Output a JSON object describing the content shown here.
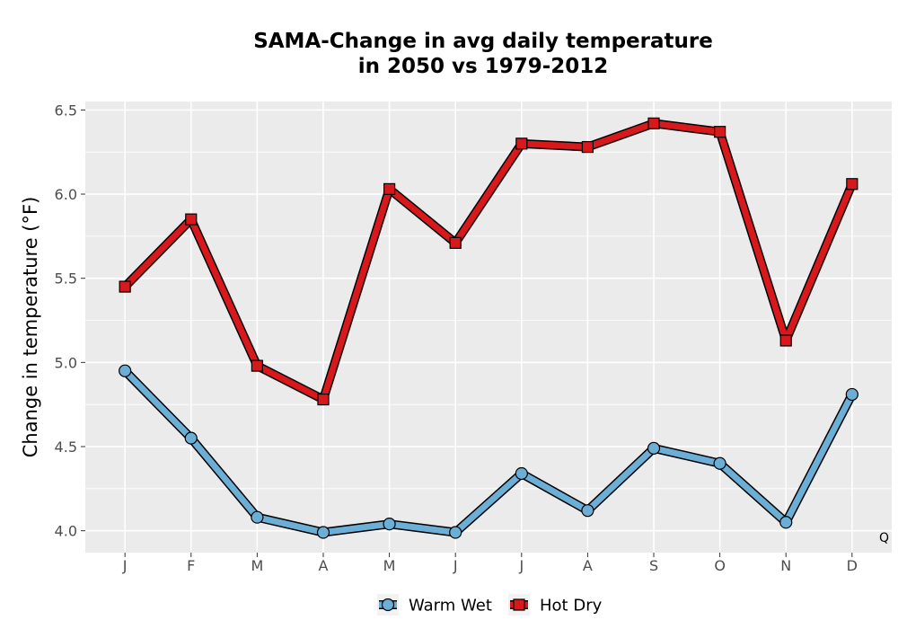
{
  "chart_data": {
    "type": "line",
    "title_lines": [
      "SAMA-Change in avg daily temperature",
      "in 2050 vs 1979-2012"
    ],
    "xlabel": "",
    "ylabel": "Change in temperature (°F)",
    "categories": [
      "J",
      "F",
      "M",
      "A",
      "M",
      "J",
      "J",
      "A",
      "S",
      "O",
      "N",
      "D"
    ],
    "ylim": [
      3.87,
      6.55
    ],
    "y_ticks": [
      4.0,
      4.5,
      5.0,
      5.5,
      6.0,
      6.5
    ],
    "y_tick_labels": [
      "4.0",
      "4.5",
      "5.0",
      "5.5",
      "6.0",
      "6.5"
    ],
    "grid": true,
    "legend_position": "bottom",
    "corner_annotation": "Q",
    "series": [
      {
        "name": "Warm Wet",
        "marker": "circle",
        "color": "#6baed6",
        "values": [
          4.95,
          4.55,
          4.08,
          3.99,
          4.04,
          3.99,
          4.34,
          4.12,
          4.49,
          4.4,
          4.05,
          4.81
        ]
      },
      {
        "name": "Hot Dry",
        "marker": "square",
        "color": "#d7191c",
        "values": [
          5.45,
          5.85,
          4.98,
          4.78,
          6.03,
          5.71,
          6.3,
          6.28,
          6.42,
          6.37,
          5.13,
          6.06
        ]
      }
    ],
    "colors": {
      "panel": "#ebebeb",
      "grid": "#ffffff",
      "outline": "#000000"
    }
  }
}
